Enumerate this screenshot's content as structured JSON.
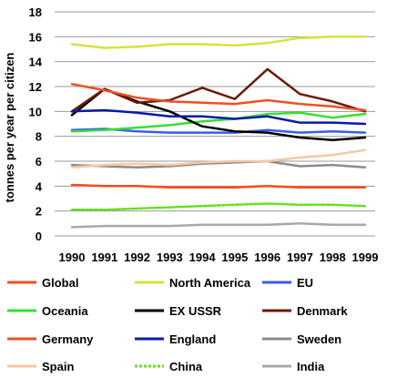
{
  "chart_data": {
    "type": "line",
    "title": "",
    "xlabel": "",
    "ylabel": "tonnes per year per citizen",
    "x": [
      "1990",
      "1991",
      "1992",
      "1993",
      "1994",
      "1995",
      "1996",
      "1997",
      "1998",
      "1999"
    ],
    "ylim": [
      0,
      18
    ],
    "yticks": [
      "0",
      "2",
      "4",
      "6",
      "8",
      "10",
      "12",
      "14",
      "16",
      "18"
    ],
    "grid": true,
    "legend_position": "bottom",
    "series": [
      {
        "name": "Global",
        "color": "#ff4a1a",
        "values": [
          4.1,
          4.0,
          4.0,
          3.9,
          3.9,
          3.9,
          4.0,
          3.9,
          3.9,
          3.9
        ]
      },
      {
        "name": "North America",
        "color": "#d4e33a",
        "values": [
          15.4,
          15.1,
          15.2,
          15.4,
          15.4,
          15.3,
          15.5,
          15.9,
          16.0,
          16.0
        ]
      },
      {
        "name": "EU",
        "color": "#3a5cf0",
        "values": [
          8.5,
          8.6,
          8.4,
          8.3,
          8.3,
          8.3,
          8.5,
          8.3,
          8.4,
          8.3
        ]
      },
      {
        "name": "Oceania",
        "color": "#33e033",
        "values": [
          8.4,
          8.5,
          8.7,
          8.9,
          9.2,
          9.4,
          9.8,
          9.9,
          9.5,
          9.8
        ]
      },
      {
        "name": "EX USSR",
        "color": "#000000",
        "values": [
          9.7,
          11.8,
          10.8,
          10.0,
          8.8,
          8.4,
          8.3,
          7.9,
          7.7,
          7.9
        ]
      },
      {
        "name": "Denmark",
        "color": "#6b1a0a",
        "values": [
          10.0,
          11.8,
          10.7,
          10.9,
          11.9,
          11.0,
          13.4,
          11.4,
          10.8,
          10.0
        ]
      },
      {
        "name": "Germany",
        "color": "#f05020",
        "values": [
          12.2,
          11.7,
          11.1,
          10.8,
          10.7,
          10.6,
          10.9,
          10.6,
          10.4,
          10.1
        ]
      },
      {
        "name": "England",
        "color": "#0a1aa8",
        "values": [
          10.0,
          10.1,
          9.9,
          9.6,
          9.6,
          9.4,
          9.6,
          9.1,
          9.1,
          9.0
        ]
      },
      {
        "name": "Sweden",
        "color": "#8c8c8c",
        "values": [
          5.7,
          5.6,
          5.5,
          5.6,
          5.8,
          5.9,
          6.0,
          5.6,
          5.7,
          5.5
        ]
      },
      {
        "name": "Spain",
        "color": "#f5c8a0",
        "values": [
          5.5,
          5.7,
          5.8,
          5.7,
          5.9,
          6.0,
          6.0,
          6.3,
          6.5,
          6.9
        ]
      },
      {
        "name": "China",
        "color": "#66e01a",
        "dashed": true,
        "values": [
          2.1,
          2.1,
          2.2,
          2.3,
          2.4,
          2.5,
          2.6,
          2.5,
          2.5,
          2.4
        ]
      },
      {
        "name": "India",
        "color": "#a8a8a8",
        "values": [
          0.7,
          0.8,
          0.8,
          0.8,
          0.9,
          0.9,
          0.9,
          1.0,
          0.9,
          0.9
        ]
      }
    ]
  }
}
